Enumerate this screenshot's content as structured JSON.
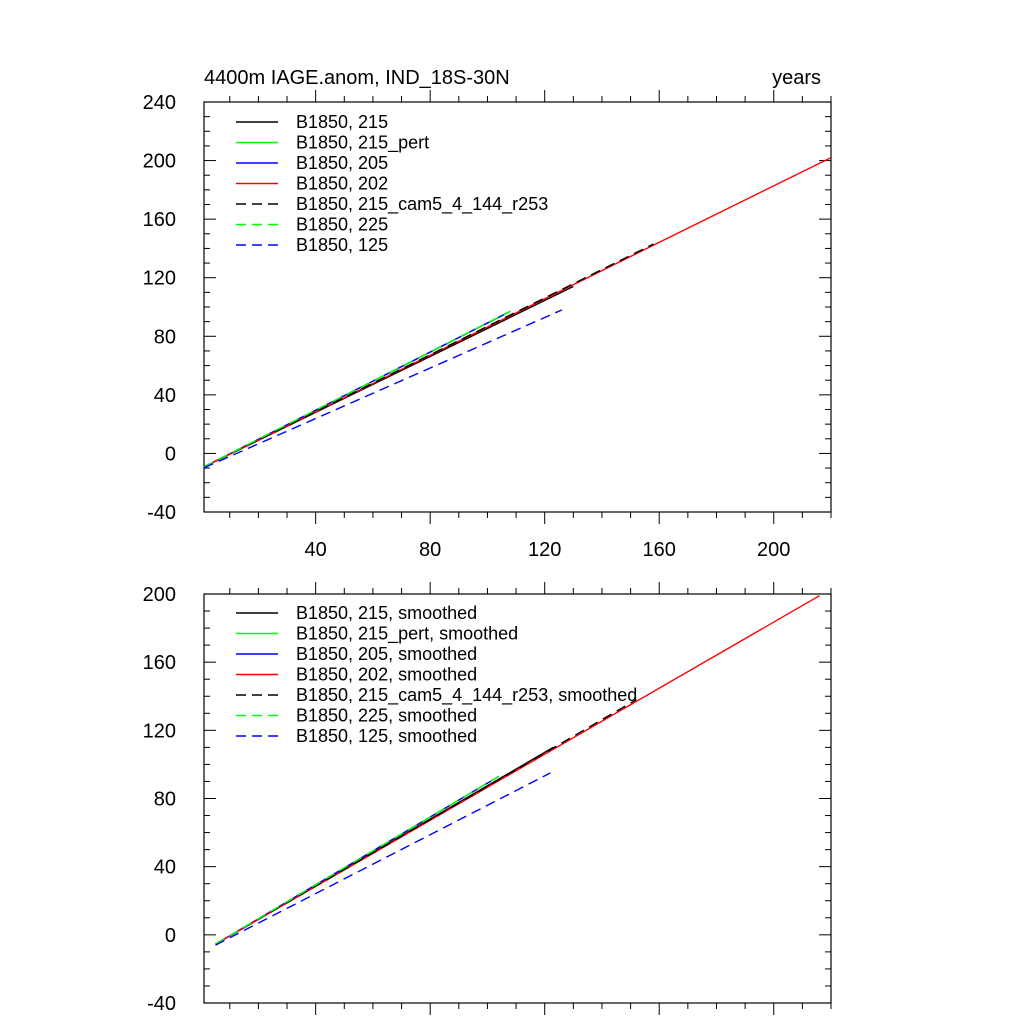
{
  "colors": {
    "black": "#000000",
    "green": "#00ff00",
    "blue": "#0000ff",
    "red": "#ff0000"
  },
  "chart_data": [
    {
      "type": "line",
      "title": "4400m IAGE.anom, IND_18S-30N",
      "title_right": "years",
      "xlabel": "",
      "ylabel": "",
      "xlim": [
        1,
        220
      ],
      "ylim": [
        -40,
        240
      ],
      "xticks": [
        40,
        80,
        120,
        160,
        200
      ],
      "yticks": [
        -40,
        0,
        40,
        80,
        120,
        160,
        200,
        240
      ],
      "grid": false,
      "legend_position": "top-left",
      "series": [
        {
          "name": "B1850, 215",
          "color": "black",
          "dash": false,
          "x": [
            1,
            130
          ],
          "y": [
            -9.2,
            114
          ]
        },
        {
          "name": "B1850, 215_pert",
          "color": "green",
          "dash": false,
          "x": [
            1,
            108
          ],
          "y": [
            -9.2,
            97
          ]
        },
        {
          "name": "B1850, 205",
          "color": "blue",
          "dash": false,
          "x": [
            1,
            108
          ],
          "y": [
            -9.2,
            97
          ]
        },
        {
          "name": "B1850, 202",
          "color": "red",
          "dash": false,
          "x": [
            1,
            220
          ],
          "y": [
            -9.2,
            202
          ]
        },
        {
          "name": "B1850, 215_cam5_4_144_r253",
          "color": "black",
          "dash": true,
          "x": [
            1,
            158
          ],
          "y": [
            -9.2,
            143
          ]
        },
        {
          "name": "B1850, 225",
          "color": "green",
          "dash": true,
          "x": [
            1,
            108
          ],
          "y": [
            -9.2,
            97
          ]
        },
        {
          "name": "B1850, 125",
          "color": "blue",
          "dash": true,
          "x": [
            1,
            126
          ],
          "y": [
            -9.8,
            98
          ]
        }
      ]
    },
    {
      "type": "line",
      "title": "",
      "xlabel": "",
      "ylabel": "",
      "xlim": [
        1,
        220
      ],
      "ylim": [
        -40,
        200
      ],
      "xticks": [
        40,
        80,
        120,
        160,
        200
      ],
      "yticks": [
        -40,
        0,
        40,
        80,
        120,
        160,
        200
      ],
      "grid": false,
      "legend_position": "top-left",
      "series": [
        {
          "name": "B1850, 215, smoothed",
          "color": "black",
          "dash": false,
          "x": [
            5,
            123
          ],
          "y": [
            -5.5,
            110
          ]
        },
        {
          "name": "B1850, 215_pert, smoothed",
          "color": "green",
          "dash": false,
          "x": [
            5,
            104
          ],
          "y": [
            -5.5,
            93
          ]
        },
        {
          "name": "B1850, 205, smoothed",
          "color": "blue",
          "dash": false,
          "x": [
            5,
            104
          ],
          "y": [
            -5.5,
            93
          ]
        },
        {
          "name": "B1850, 202, smoothed",
          "color": "red",
          "dash": false,
          "x": [
            5,
            216
          ],
          "y": [
            -5.5,
            199
          ]
        },
        {
          "name": "B1850, 215_cam5_4_144_r253, smoothed",
          "color": "black",
          "dash": true,
          "x": [
            5,
            152
          ],
          "y": [
            -5.5,
            138
          ]
        },
        {
          "name": "B1850, 225, smoothed",
          "color": "green",
          "dash": true,
          "x": [
            5,
            104
          ],
          "y": [
            -5.5,
            93
          ]
        },
        {
          "name": "B1850, 125, smoothed",
          "color": "blue",
          "dash": true,
          "x": [
            5,
            122
          ],
          "y": [
            -6,
            95
          ]
        }
      ]
    }
  ]
}
